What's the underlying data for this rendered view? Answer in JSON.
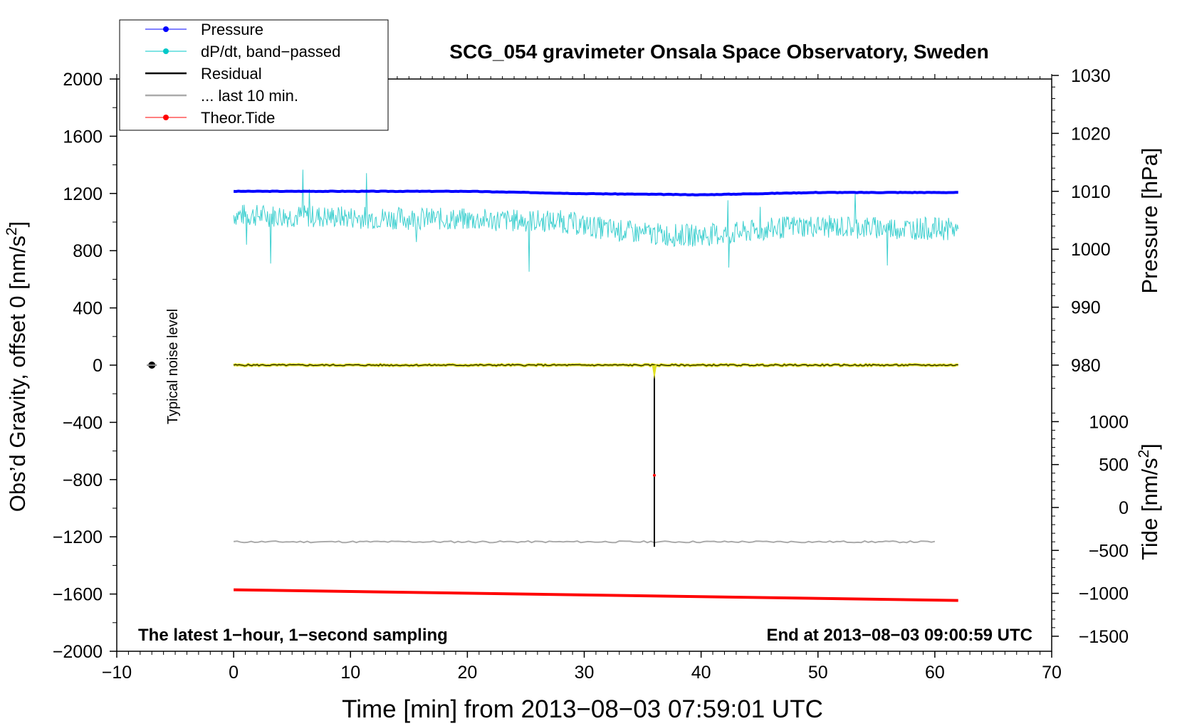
{
  "chart_data": {
    "type": "line",
    "title": "SCG_054 gravimeter Onsala Space Observatory, Sweden",
    "xlabel": "Time [min] from 2013−08−03 07:59:01 UTC",
    "ylabel_main": "Obs’d Gravity, offset 0 [nm/s",
    "ylabel_main_sup": "2",
    "ylabel_main_end": "]",
    "ylabel_pressure": "Pressure [hPa]",
    "ylabel_tide": "Tide [nm/s",
    "ylabel_tide_sup": "2",
    "ylabel_tide_end": "]",
    "xlim": [
      -10,
      70
    ],
    "ylim": [
      -2000,
      2000
    ],
    "pressure_axis": {
      "ticks": [
        980,
        990,
        1000,
        1010,
        1020,
        1030
      ],
      "scale": {
        "value": 1000,
        "g": 810,
        "per_unit": 40.5
      }
    },
    "tide_axis": {
      "ticks": [
        -1500,
        -1000,
        -500,
        0,
        500,
        1000
      ],
      "scale": {
        "value": 0,
        "g": -995,
        "per_unit": 0.6
      }
    },
    "x_ticks": [
      "−10",
      "0",
      "10",
      "20",
      "30",
      "40",
      "50",
      "60",
      "70"
    ],
    "x_tick_values": [
      -10,
      0,
      10,
      20,
      30,
      40,
      50,
      60,
      70
    ],
    "y_ticks": [
      "2000",
      "1600",
      "1200",
      "800",
      "400",
      "0",
      "−400",
      "−800",
      "−1200",
      "−1600",
      "−2000"
    ],
    "y_tick_values": [
      2000,
      1600,
      1200,
      800,
      400,
      0,
      -400,
      -800,
      -1200,
      -1600,
      -2000
    ],
    "pressure_tick_labels": [
      "980",
      "990",
      "1000",
      "1010",
      "1020",
      "1030"
    ],
    "tide_tick_labels": [
      "−1500",
      "−1000",
      "−500",
      "0",
      "500",
      "1000"
    ],
    "legend": [
      {
        "name": "Pressure",
        "color": "#0000ff",
        "marker": true
      },
      {
        "name": "dP/dt, band−passed",
        "color": "#00c8c8",
        "marker": true
      },
      {
        "name": "Residual",
        "color": "#000000",
        "marker": false
      },
      {
        "name": "... last 10 min.",
        "color": "#aaaaaa",
        "marker": false
      },
      {
        "name": "Theor.Tide",
        "color": "#ff0000",
        "marker": true
      }
    ],
    "series": [
      {
        "name": "Pressure",
        "axis": "pressure",
        "color": "#0000ff",
        "x": [
          0,
          10,
          20,
          30,
          40,
          50,
          62
        ],
        "values": [
          1010,
          1010,
          1010,
          1009.6,
          1009.4,
          1009.8,
          1009.8
        ]
      },
      {
        "name": "dP/dt, band-passed",
        "axis": "main",
        "color": "#40d0d0",
        "x": [
          0,
          62
        ],
        "values": [
          1050,
          950
        ],
        "noise_amplitude": 80
      },
      {
        "name": "Residual",
        "axis": "main",
        "color": "#000000",
        "x": [
          0,
          36,
          36,
          36.1,
          62
        ],
        "values": [
          0,
          0,
          -1270,
          0,
          0
        ]
      },
      {
        "name": "... last 10 min.",
        "axis": "main",
        "color": "#aaaaaa",
        "x": [
          0,
          60
        ],
        "values": [
          -1235,
          -1235
        ]
      },
      {
        "name": "Theor.Tide",
        "axis": "main",
        "color": "#ff0000",
        "x": [
          0,
          62
        ],
        "values": [
          -1570,
          -1645
        ]
      }
    ],
    "noise_marker": {
      "label": "Typical noise level",
      "x": -7,
      "y": 0
    },
    "annotations": {
      "left": "The latest 1−hour, 1−second sampling",
      "right": "End at 2013−08−03 09:00:59 UTC"
    }
  }
}
